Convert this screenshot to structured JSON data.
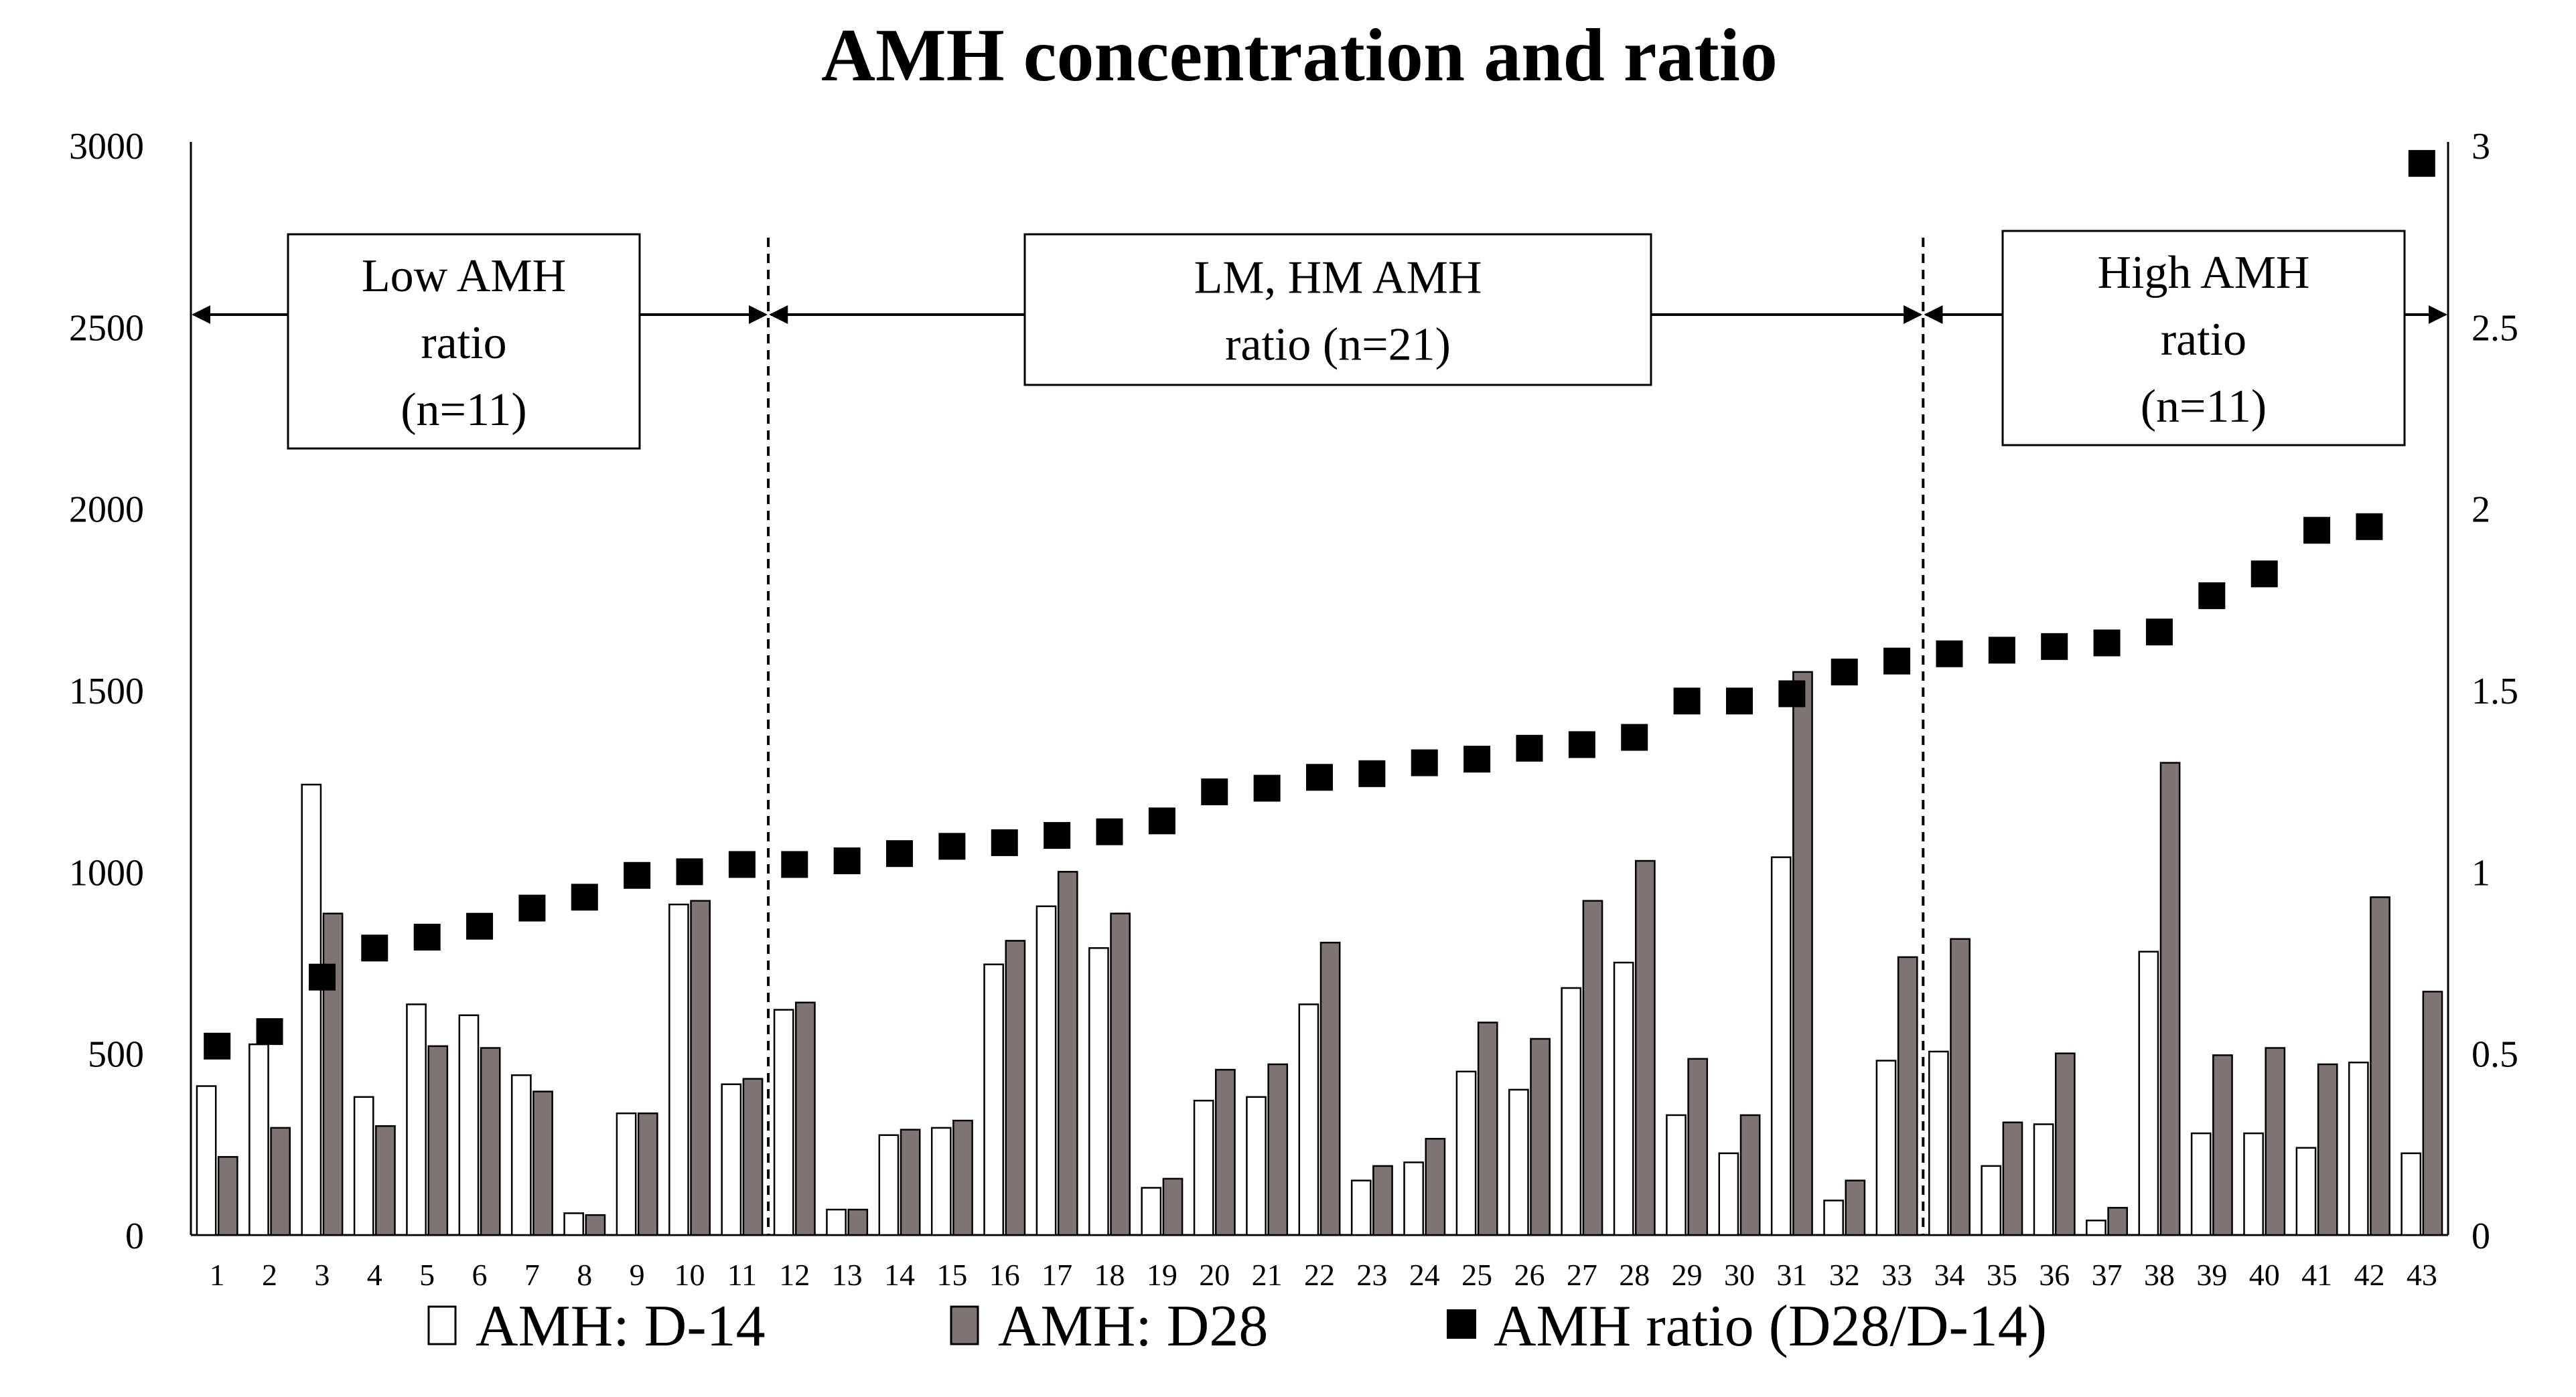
{
  "chart_data": {
    "type": "bar",
    "title": "AMH concentration and ratio",
    "categories": [
      "1",
      "2",
      "3",
      "4",
      "5",
      "6",
      "7",
      "8",
      "9",
      "10",
      "11",
      "12",
      "13",
      "14",
      "15",
      "16",
      "17",
      "18",
      "19",
      "20",
      "21",
      "22",
      "23",
      "24",
      "25",
      "26",
      "27",
      "28",
      "29",
      "30",
      "31",
      "32",
      "33",
      "34",
      "35",
      "36",
      "37",
      "38",
      "39",
      "40",
      "41",
      "42",
      "43"
    ],
    "series": [
      {
        "name": "AMH: D-14",
        "kind": "bar",
        "fill": "#ffffff",
        "values": [
          410,
          525,
          1240,
          380,
          635,
          605,
          440,
          60,
          335,
          910,
          415,
          620,
          70,
          275,
          295,
          745,
          905,
          790,
          130,
          370,
          380,
          635,
          150,
          200,
          450,
          400,
          680,
          750,
          330,
          225,
          1040,
          95,
          480,
          505,
          190,
          305,
          40,
          780,
          280,
          280,
          240,
          475,
          225
        ]
      },
      {
        "name": "AMH: D28",
        "kind": "bar",
        "fill": "#7f7474",
        "values": [
          215,
          295,
          885,
          300,
          520,
          515,
          395,
          55,
          335,
          920,
          430,
          640,
          70,
          290,
          315,
          810,
          1000,
          885,
          155,
          455,
          470,
          805,
          190,
          265,
          585,
          540,
          920,
          1030,
          485,
          330,
          1550,
          150,
          765,
          815,
          310,
          500,
          75,
          1300,
          495,
          515,
          470,
          930,
          670
        ]
      },
      {
        "name": "AMH ratio (D28/D-14)",
        "kind": "scatter",
        "axis": "right",
        "fill": "#000000",
        "values": [
          0.52,
          0.56,
          0.71,
          0.79,
          0.82,
          0.85,
          0.9,
          0.93,
          0.99,
          1.0,
          1.02,
          1.02,
          1.03,
          1.05,
          1.07,
          1.08,
          1.1,
          1.11,
          1.14,
          1.22,
          1.23,
          1.26,
          1.27,
          1.3,
          1.31,
          1.34,
          1.35,
          1.37,
          1.47,
          1.47,
          1.49,
          1.55,
          1.58,
          1.6,
          1.61,
          1.62,
          1.63,
          1.66,
          1.76,
          1.82,
          1.94,
          1.95,
          2.95
        ]
      }
    ],
    "y_left": {
      "ylim": [
        0,
        3000
      ],
      "ticks": [
        "0",
        "500",
        "1000",
        "1500",
        "2000",
        "2500",
        "3000"
      ]
    },
    "y_right": {
      "ylim": [
        0,
        3
      ],
      "ticks": [
        "0",
        "0.5",
        "1",
        "1.5",
        "2",
        "2.5",
        "3"
      ]
    },
    "regions": [
      {
        "lines": [
          "Low AMH",
          "ratio",
          "(n=11)"
        ],
        "start": 1,
        "end": 11
      },
      {
        "lines": [
          "LM, HM AMH",
          "ratio (n=21)"
        ],
        "start": 11,
        "end": 33
      },
      {
        "lines": [
          "High AMH",
          "ratio",
          "(n=11)"
        ],
        "start": 33,
        "end": 43
      }
    ],
    "divider_categories": [
      11,
      33
    ],
    "legend_position": "bottom"
  }
}
